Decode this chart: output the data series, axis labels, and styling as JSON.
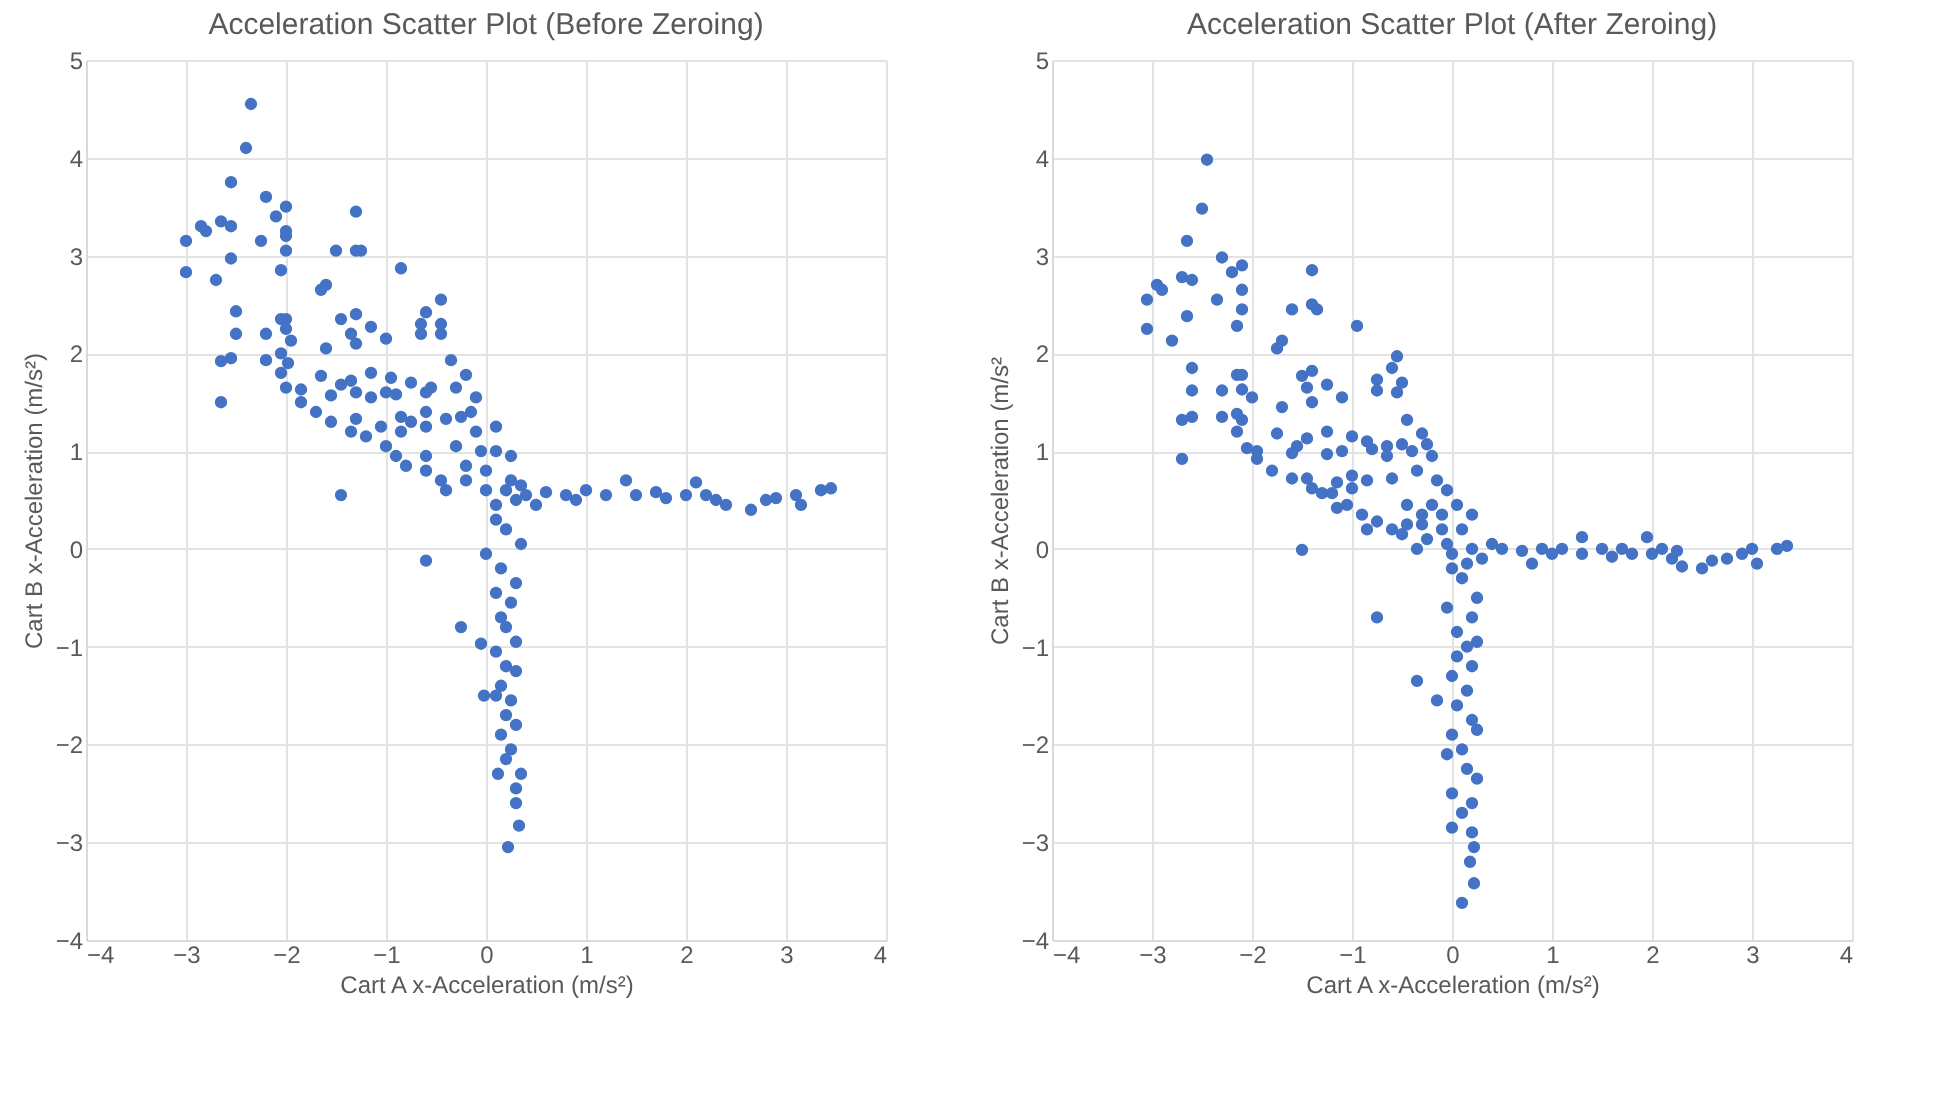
{
  "chart_data": [
    {
      "type": "scatter",
      "title": "Acceleration Scatter Plot (Before Zeroing)",
      "xlabel": "Cart A x-Acceleration (m/s²)",
      "ylabel": "Cart B x-Acceleration (m/s²)",
      "color": "#4472c4",
      "marker": "circle",
      "grid": true,
      "xlim": [
        -4,
        4
      ],
      "ylim": [
        -4,
        5
      ],
      "xticks": [
        -4,
        -3,
        -2,
        -1,
        0,
        1,
        2,
        3,
        4
      ],
      "yticks": [
        -4,
        -3,
        -2,
        -1,
        0,
        1,
        2,
        3,
        4,
        5
      ],
      "x": [
        -2.35,
        -2.4,
        -2.55,
        -2.2,
        -2.0,
        -2.1,
        -2.65,
        -2.55,
        -2.85,
        -2.8,
        -2.0,
        -2.0,
        -1.3,
        -2.25,
        -3.0,
        -1.5,
        -1.3,
        -1.25,
        -2.0,
        -2.55,
        -2.05,
        -0.85,
        -3.0,
        -2.7,
        -1.6,
        -1.65,
        -0.45,
        -2.5,
        -0.6,
        -1.3,
        -1.45,
        -2.05,
        -2.0,
        -0.65,
        -0.45,
        -1.15,
        -2.0,
        -1.35,
        -2.5,
        -2.2,
        -0.65,
        -0.45,
        -1.0,
        -1.95,
        -1.3,
        -1.6,
        -2.05,
        -0.35,
        -2.2,
        -2.55,
        -2.65,
        -1.98,
        -2.05,
        -1.15,
        -0.2,
        -1.65,
        -0.95,
        -1.35,
        -0.75,
        -1.45,
        -2.0,
        -1.85,
        -0.3,
        -0.55,
        -1.3,
        -1.0,
        -0.6,
        -0.9,
        -1.55,
        -1.15,
        -0.1,
        -2.65,
        -1.85,
        -0.85,
        -1.7,
        -0.6,
        -0.15,
        -0.4,
        -1.3,
        -0.25,
        -1.55,
        -0.75,
        -0.6,
        -1.35,
        -1.05,
        -1.2,
        -0.85,
        -1.0,
        -0.1,
        0.1,
        -0.3,
        -0.05,
        0.1,
        -0.9,
        -0.6,
        -0.8,
        -0.6,
        -0.2,
        0.25,
        -0.45,
        -0.2,
        0.0,
        -1.45,
        -0.4,
        0.0,
        0.2,
        0.4,
        0.6,
        0.8,
        0.9,
        1.0,
        1.2,
        1.4,
        1.5,
        1.7,
        1.8,
        2.0,
        2.1,
        2.2,
        2.3,
        2.4,
        2.65,
        2.8,
        2.9,
        3.1,
        3.15,
        3.35,
        3.45,
        0.3,
        0.1,
        0.5,
        0.25,
        0.35,
        0.1,
        0.2,
        0.35,
        0.0,
        0.15,
        0.3,
        0.1,
        0.25,
        0.15,
        0.2,
        0.3,
        0.1,
        0.2,
        0.3,
        0.15,
        0.1,
        0.25,
        0.2,
        0.3,
        0.15,
        0.25,
        0.2,
        0.35,
        0.12,
        0.3,
        0.3,
        0.33,
        0.22,
        -0.25,
        -0.05,
        -0.6,
        -0.02
      ],
      "values": [
        4.55,
        4.1,
        3.75,
        3.6,
        3.5,
        3.4,
        3.35,
        3.3,
        3.3,
        3.25,
        3.2,
        3.25,
        3.45,
        3.15,
        3.15,
        3.05,
        3.05,
        3.05,
        3.05,
        2.97,
        2.85,
        2.87,
        2.83,
        2.75,
        2.7,
        2.65,
        2.55,
        2.43,
        2.42,
        2.4,
        2.35,
        2.35,
        2.35,
        2.3,
        2.3,
        2.27,
        2.25,
        2.2,
        2.2,
        2.2,
        2.2,
        2.2,
        2.15,
        2.13,
        2.1,
        2.05,
        2.0,
        1.93,
        1.93,
        1.95,
        1.92,
        1.9,
        1.8,
        1.8,
        1.78,
        1.77,
        1.75,
        1.72,
        1.7,
        1.68,
        1.65,
        1.63,
        1.65,
        1.65,
        1.6,
        1.6,
        1.6,
        1.58,
        1.57,
        1.55,
        1.55,
        1.5,
        1.5,
        1.35,
        1.4,
        1.4,
        1.4,
        1.33,
        1.33,
        1.35,
        1.3,
        1.3,
        1.25,
        1.2,
        1.25,
        1.15,
        1.2,
        1.05,
        1.2,
        1.25,
        1.05,
        1.0,
        1.0,
        0.95,
        0.95,
        0.85,
        0.8,
        0.85,
        0.95,
        0.7,
        0.7,
        0.8,
        0.55,
        0.6,
        0.6,
        0.6,
        0.55,
        0.58,
        0.55,
        0.5,
        0.6,
        0.55,
        0.7,
        0.55,
        0.58,
        0.52,
        0.55,
        0.68,
        0.55,
        0.5,
        0.45,
        0.4,
        0.5,
        0.52,
        0.55,
        0.45,
        0.6,
        0.62,
        0.5,
        0.45,
        0.45,
        0.7,
        0.65,
        0.3,
        0.2,
        0.05,
        -0.05,
        -0.2,
        -0.35,
        -0.45,
        -0.55,
        -0.7,
        -0.8,
        -0.95,
        -1.05,
        -1.2,
        -1.25,
        -1.4,
        -1.5,
        -1.55,
        -1.7,
        -1.8,
        -1.9,
        -2.05,
        -2.15,
        -2.3,
        -2.3,
        -2.45,
        -2.6,
        -2.83,
        -3.05,
        -0.8,
        -0.97,
        -0.12,
        -1.5
      ]
    },
    {
      "type": "scatter",
      "title": "Acceleration Scatter Plot (After Zeroing)",
      "xlabel": "Cart A x-Acceleration (m/s²)",
      "ylabel": "Cart B x-Acceleration (m/s²",
      "color": "#4472c4",
      "marker": "circle",
      "grid": true,
      "xlim": [
        -4,
        4
      ],
      "ylim": [
        -4,
        5
      ],
      "xticks": [
        -4,
        -3,
        -2,
        -1,
        0,
        1,
        2,
        3,
        4
      ],
      "yticks": [
        -4,
        -3,
        -2,
        -1,
        0,
        1,
        2,
        3,
        4,
        5
      ],
      "x": [
        -2.45,
        -2.5,
        -2.65,
        -2.3,
        -2.1,
        -2.2,
        -1.4,
        -2.7,
        -2.6,
        -2.95,
        -2.9,
        -3.05,
        -2.35,
        -2.1,
        -1.4,
        -1.35,
        -1.6,
        -2.1,
        -2.65,
        -0.95,
        -2.15,
        -3.05,
        -2.8,
        -1.7,
        -1.75,
        -0.55,
        -2.6,
        -1.4,
        -0.6,
        -2.15,
        -2.1,
        -1.5,
        -0.75,
        -0.5,
        -1.25,
        -1.45,
        -2.1,
        -2.3,
        -2.6,
        -0.75,
        -0.55,
        -2.0,
        -1.1,
        -1.4,
        -1.7,
        -2.15,
        -2.6,
        -2.3,
        -2.7,
        -2.1,
        -0.45,
        -1.25,
        -2.15,
        -1.75,
        -1.0,
        -0.3,
        -1.45,
        -0.85,
        -0.5,
        -0.25,
        -1.55,
        -2.05,
        -0.65,
        -0.8,
        -1.95,
        -1.1,
        -1.6,
        -1.25,
        -0.4,
        -0.2,
        -2.7,
        -1.95,
        -0.65,
        -1.8,
        -0.35,
        -1.0,
        -1.6,
        -1.45,
        -0.6,
        -0.85,
        -1.15,
        -0.15,
        -1.0,
        -1.4,
        -1.3,
        -1.2,
        -0.05,
        -1.05,
        -0.45,
        -0.2,
        -1.15,
        0.05,
        0.2,
        -0.9,
        -0.3,
        -0.1,
        -0.75,
        -0.45,
        -0.85,
        -0.6,
        -0.3,
        -0.1,
        0.1,
        -0.5,
        -0.25,
        -0.05,
        -1.5,
        -0.35,
        0.0,
        0.4,
        0.2,
        0.5,
        0.7,
        0.8,
        0.9,
        1.0,
        1.1,
        1.3,
        1.3,
        1.5,
        1.6,
        1.7,
        1.8,
        1.95,
        2.0,
        2.1,
        2.2,
        2.25,
        2.3,
        2.5,
        2.6,
        2.75,
        2.9,
        3.0,
        3.05,
        3.25,
        3.35,
        0.3,
        0.15,
        0.0,
        0.1,
        0.25,
        -0.05,
        0.2,
        0.05,
        0.15,
        0.25,
        0.05,
        0.2,
        0.0,
        0.15,
        0.05,
        0.2,
        0.0,
        0.25,
        0.1,
        -0.05,
        0.15,
        0.25,
        0.0,
        0.2,
        0.1,
        0.0,
        0.2,
        0.22,
        0.18,
        0.22,
        0.1,
        -0.35,
        -0.15,
        -0.75
      ],
      "values": [
        3.98,
        3.48,
        3.15,
        2.98,
        2.9,
        2.83,
        2.85,
        2.78,
        2.75,
        2.7,
        2.65,
        2.55,
        2.55,
        2.65,
        2.5,
        2.45,
        2.45,
        2.45,
        2.38,
        2.28,
        2.28,
        2.25,
        2.13,
        2.13,
        2.05,
        1.97,
        1.85,
        1.82,
        1.85,
        1.78,
        1.78,
        1.77,
        1.73,
        1.7,
        1.68,
        1.65,
        1.63,
        1.62,
        1.62,
        1.62,
        1.6,
        1.55,
        1.55,
        1.5,
        1.45,
        1.38,
        1.35,
        1.35,
        1.32,
        1.32,
        1.32,
        1.2,
        1.2,
        1.18,
        1.15,
        1.18,
        1.13,
        1.1,
        1.07,
        1.07,
        1.05,
        1.03,
        1.05,
        1.02,
        1.0,
        1.0,
        0.98,
        0.97,
        1.0,
        0.95,
        0.92,
        0.92,
        0.95,
        0.8,
        0.8,
        0.75,
        0.72,
        0.72,
        0.72,
        0.7,
        0.68,
        0.7,
        0.62,
        0.62,
        0.57,
        0.57,
        0.6,
        0.45,
        0.45,
        0.45,
        0.42,
        0.45,
        0.35,
        0.35,
        0.35,
        0.35,
        0.28,
        0.25,
        0.2,
        0.2,
        0.25,
        0.2,
        0.2,
        0.15,
        0.1,
        0.05,
        -0.01,
        0.0,
        -0.05,
        0.05,
        0.0,
        0.0,
        -0.02,
        -0.15,
        0.0,
        -0.05,
        0.0,
        0.12,
        -0.05,
        0.0,
        -0.08,
        0.0,
        -0.05,
        0.12,
        -0.05,
        0.0,
        -0.1,
        -0.02,
        -0.18,
        -0.2,
        -0.12,
        -0.1,
        -0.05,
        0.0,
        -0.15,
        0.0,
        0.03,
        -0.1,
        -0.15,
        -0.2,
        -0.3,
        -0.5,
        -0.6,
        -0.7,
        -0.85,
        -1.0,
        -0.95,
        -1.1,
        -1.2,
        -1.3,
        -1.45,
        -1.6,
        -1.75,
        -1.9,
        -1.85,
        -2.05,
        -2.1,
        -2.25,
        -2.35,
        -2.5,
        -2.6,
        -2.7,
        -2.85,
        -2.9,
        -3.05,
        -3.2,
        -3.42,
        -3.62,
        -1.35,
        -1.55,
        -0.7
      ]
    }
  ]
}
